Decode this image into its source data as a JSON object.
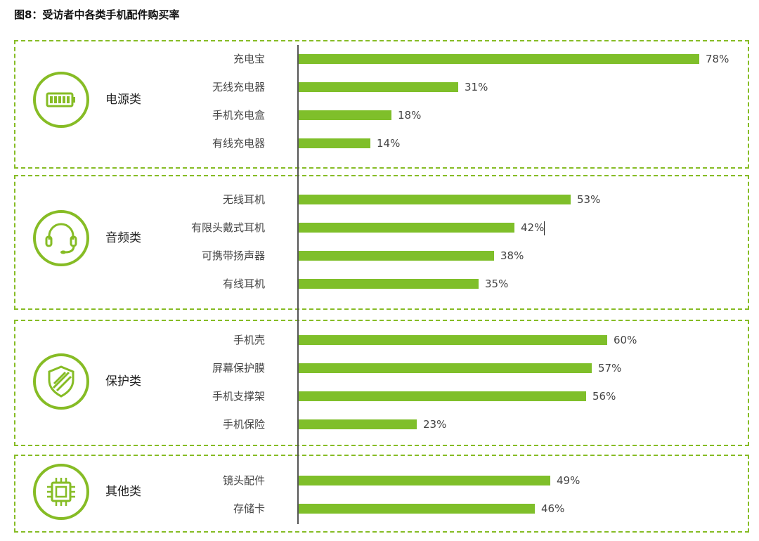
{
  "title": "图8：受访者中各类手机配件购买率",
  "colors": {
    "accent": "#86bc25",
    "bar": "#7fbf2a"
  },
  "chart_data": {
    "type": "bar",
    "orientation": "horizontal",
    "xlim": [
      0,
      100
    ],
    "groups": [
      {
        "name": "电源类",
        "icon": "battery-icon",
        "categories": [
          "充电宝",
          "无线充电器",
          "手机充电盒",
          "有线充电器"
        ],
        "values": [
          78,
          31,
          18,
          14
        ],
        "labels": [
          "78%",
          "31%",
          "18%",
          "14%"
        ]
      },
      {
        "name": "音频类",
        "icon": "headset-icon",
        "categories": [
          "无线耳机",
          "有限头戴式耳机",
          "可携带扬声器",
          "有线耳机"
        ],
        "values": [
          53,
          42,
          38,
          35
        ],
        "labels": [
          "53%",
          "42%",
          "38%",
          "35%"
        ]
      },
      {
        "name": "保护类",
        "icon": "shield-icon",
        "categories": [
          "手机壳",
          "屏幕保护膜",
          "手机支撑架",
          "手机保险"
        ],
        "values": [
          60,
          57,
          56,
          23
        ],
        "labels": [
          "60%",
          "57%",
          "56%",
          "23%"
        ]
      },
      {
        "name": "其他类",
        "icon": "chip-icon",
        "categories": [
          "镜头配件",
          "存储卡"
        ],
        "values": [
          49,
          46
        ],
        "labels": [
          "49%",
          "46%"
        ]
      }
    ]
  }
}
